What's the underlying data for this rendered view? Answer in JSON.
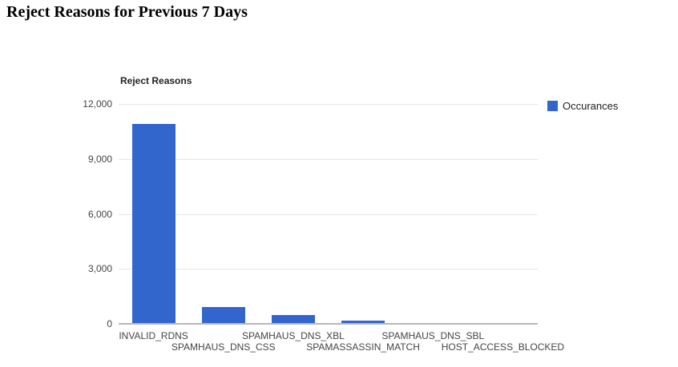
{
  "page": {
    "title": "Reject Reasons for Previous 7 Days"
  },
  "chart": {
    "title": "Reject Reasons",
    "legend": {
      "label": "Occurances"
    }
  },
  "colors": {
    "bar": "#3366cc",
    "gridline": "#e6e6e6",
    "axis_line": "#b7b7b7",
    "axis_label": "#444444"
  },
  "chart_data": {
    "type": "bar",
    "title": "Reject Reasons",
    "categories": [
      "INVALID_RDNS",
      "SPAMHAUS_DNS_CSS",
      "SPAMHAUS_DNS_XBL",
      "SPAMASSASSIN_MATCH",
      "SPAMHAUS_DNS_SBL",
      "HOST_ACCESS_BLOCKED"
    ],
    "series": [
      {
        "name": "Occurances",
        "values": [
          10900,
          900,
          480,
          190,
          60,
          10
        ]
      }
    ],
    "xlabel": "",
    "ylabel": "",
    "ylim": [
      0,
      12000
    ],
    "yticks": [
      0,
      3000,
      6000,
      9000,
      12000
    ],
    "ytick_labels": [
      "0",
      "3,000",
      "6,000",
      "9,000",
      "12,000"
    ],
    "grid": true,
    "legend_position": "right",
    "x_labels_staggered": true
  }
}
